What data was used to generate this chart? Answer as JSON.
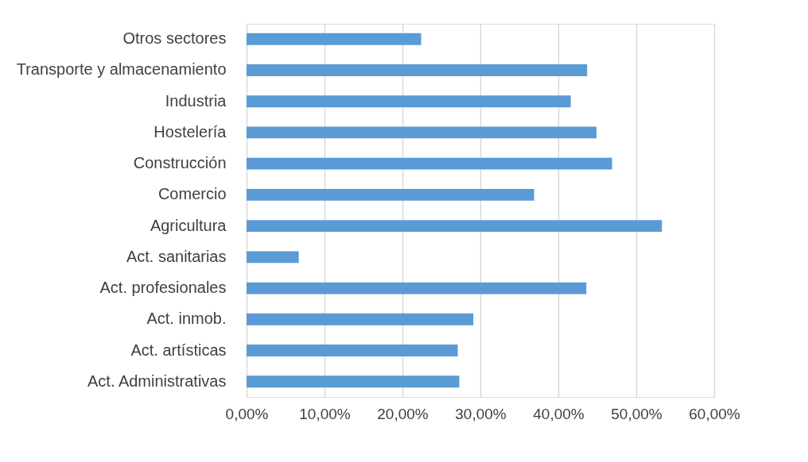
{
  "chart_data": {
    "type": "bar",
    "orientation": "horizontal",
    "categories": [
      "Otros sectores",
      "Transporte y almacenamiento",
      "Industria",
      "Hostelería",
      "Construcción",
      "Comercio",
      "Agricultura",
      "Act. sanitarias",
      "Act. profesionales",
      "Act. inmob.",
      "Act. artísticas",
      "Act. Administrativas"
    ],
    "values": [
      22.4,
      43.7,
      41.6,
      44.9,
      46.9,
      36.9,
      53.3,
      6.7,
      43.6,
      29.1,
      27.1,
      27.3
    ],
    "color": "#5b9bd5",
    "xlim": [
      0,
      60
    ],
    "xticks": [
      {
        "value": 0,
        "label": "0,00%"
      },
      {
        "value": 10,
        "label": "10,00%"
      },
      {
        "value": 20,
        "label": "20,00%"
      },
      {
        "value": 30,
        "label": "30,00%"
      },
      {
        "value": 40,
        "label": "40,00%"
      },
      {
        "value": 50,
        "label": "50,00%"
      },
      {
        "value": 60,
        "label": "60,00%"
      }
    ],
    "grid": "x"
  }
}
